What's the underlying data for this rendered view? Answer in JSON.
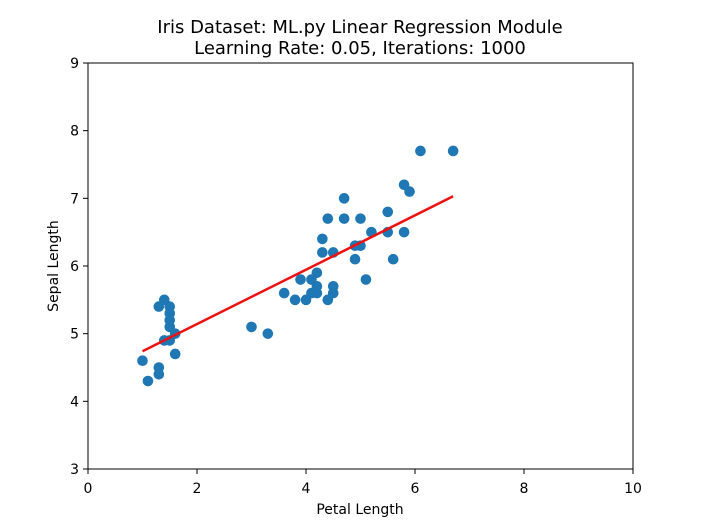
{
  "chart_data": {
    "type": "scatter",
    "title": "Iris Dataset: ML.py Linear Regression Module",
    "subtitle": "Learning Rate: 0.05, Iterations: 1000",
    "xlabel": "Petal Length",
    "ylabel": "Sepal Length",
    "xlim": [
      0,
      10
    ],
    "ylim": [
      3,
      9
    ],
    "xticks": [
      0,
      2,
      4,
      6,
      8,
      10
    ],
    "yticks": [
      3,
      4,
      5,
      6,
      7,
      8,
      9
    ],
    "grid": false,
    "colors": {
      "points": "#1f77b4",
      "line": "#ee1111"
    },
    "series": [
      {
        "type": "scatter",
        "points": [
          [
            1.0,
            4.6
          ],
          [
            1.1,
            4.3
          ],
          [
            1.3,
            4.5
          ],
          [
            1.3,
            4.4
          ],
          [
            1.3,
            5.4
          ],
          [
            1.4,
            5.5
          ],
          [
            1.4,
            4.9
          ],
          [
            1.5,
            5.4
          ],
          [
            1.5,
            5.3
          ],
          [
            1.5,
            5.2
          ],
          [
            1.5,
            5.1
          ],
          [
            1.5,
            4.9
          ],
          [
            1.6,
            5.0
          ],
          [
            1.6,
            4.7
          ],
          [
            3.0,
            5.1
          ],
          [
            3.3,
            5.0
          ],
          [
            3.6,
            5.6
          ],
          [
            3.8,
            5.5
          ],
          [
            3.9,
            5.8
          ],
          [
            4.0,
            5.5
          ],
          [
            4.1,
            5.6
          ],
          [
            4.1,
            5.8
          ],
          [
            4.2,
            5.6
          ],
          [
            4.2,
            5.7
          ],
          [
            4.2,
            5.9
          ],
          [
            4.3,
            6.2
          ],
          [
            4.3,
            6.4
          ],
          [
            4.4,
            6.7
          ],
          [
            4.4,
            5.5
          ],
          [
            4.5,
            5.6
          ],
          [
            4.5,
            5.7
          ],
          [
            4.5,
            6.2
          ],
          [
            4.7,
            7.0
          ],
          [
            4.7,
            6.7
          ],
          [
            4.9,
            6.3
          ],
          [
            4.9,
            6.1
          ],
          [
            5.0,
            6.7
          ],
          [
            5.0,
            6.3
          ],
          [
            5.1,
            5.8
          ],
          [
            5.2,
            6.5
          ],
          [
            5.5,
            6.8
          ],
          [
            5.5,
            6.5
          ],
          [
            5.6,
            6.1
          ],
          [
            5.8,
            7.2
          ],
          [
            5.8,
            6.5
          ],
          [
            5.9,
            7.1
          ],
          [
            6.1,
            7.7
          ],
          [
            6.7,
            7.7
          ]
        ]
      },
      {
        "type": "line",
        "points": [
          [
            1.0,
            4.74
          ],
          [
            6.7,
            7.03
          ]
        ]
      }
    ]
  }
}
